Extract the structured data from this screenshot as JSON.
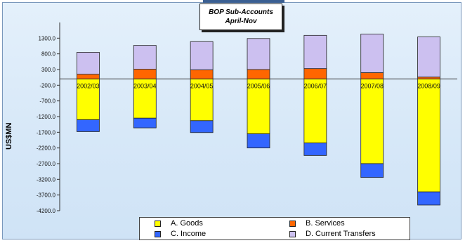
{
  "chart_data": {
    "type": "bar",
    "stacked": true,
    "title": "BOP Sub-Accounts",
    "subtitle": "April-Nov",
    "xlabel": "",
    "ylabel": "US$MN",
    "categories": [
      "2002/03",
      "2003/04",
      "2004/05",
      "2005/06",
      "2006/07",
      "2007/08",
      "2008/09"
    ],
    "y_ticks": [
      "1300.0",
      "800.0",
      "300.0",
      "-200.0",
      "-700.0",
      "-1200.0",
      "-1700.0",
      "-2200.0",
      "-2700.0",
      "-3200.0",
      "-3700.0",
      "-4200.0"
    ],
    "ylim": [
      -4200,
      1800
    ],
    "grid": false,
    "legend_position": "bottom",
    "series": [
      {
        "name": "A. Goods",
        "color": "#ffff00",
        "values": [
          -1300,
          -1250,
          -1330,
          -1750,
          -2040,
          -2700,
          -3600
        ]
      },
      {
        "name": "B. Services",
        "color": "#ff6600",
        "values": [
          150,
          310,
          290,
          300,
          330,
          200,
          60
        ]
      },
      {
        "name": "C. Income",
        "color": "#3366ff",
        "values": [
          -380,
          -310,
          -380,
          -450,
          -400,
          -440,
          -420
        ]
      },
      {
        "name": "D. Current Transfers",
        "color": "#ccc0f0",
        "values": [
          700,
          760,
          900,
          990,
          1060,
          1230,
          1280
        ]
      }
    ]
  },
  "ui": {
    "background_color": "#d7e8f8",
    "axis_color": "#333333"
  }
}
